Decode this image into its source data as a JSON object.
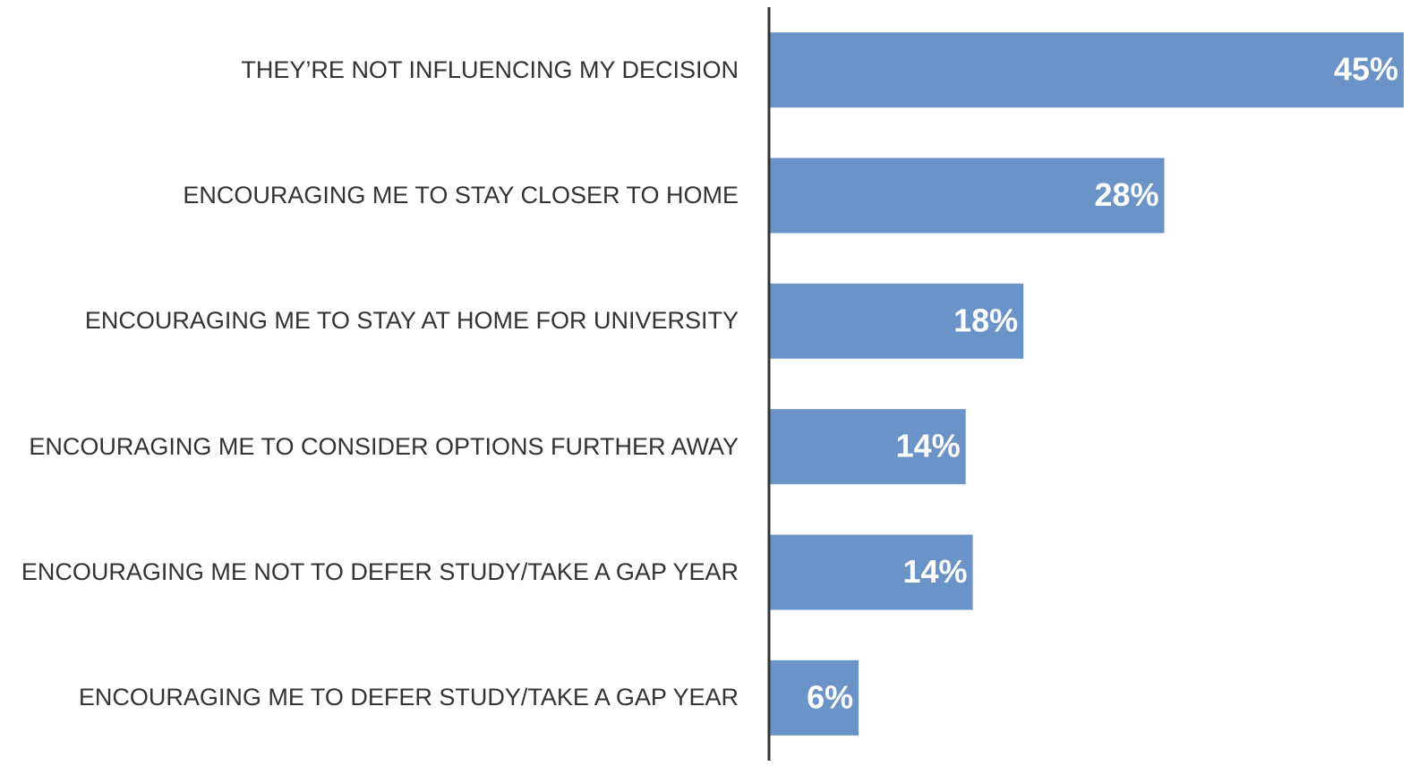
{
  "chart_data": {
    "type": "bar",
    "orientation": "horizontal",
    "categories": [
      "THEY’RE NOT INFLUENCING MY DECISION",
      "ENCOURAGING ME TO STAY CLOSER TO HOME",
      "ENCOURAGING ME TO STAY AT HOME FOR UNIVERSITY",
      "ENCOURAGING ME TO CONSIDER OPTIONS FURTHER AWAY",
      "ENCOURAGING ME NOT TO DEFER STUDY/TAKE A GAP YEAR",
      "ENCOURAGING ME TO DEFER STUDY/TAKE A GAP YEAR"
    ],
    "values": [
      45,
      28,
      18,
      13.9,
      14.4,
      6.3
    ],
    "value_labels": [
      "45%",
      "28%",
      "18%",
      "14%",
      "14%",
      "6%"
    ],
    "color": "#6a93c7",
    "xlim": [
      0,
      45
    ]
  }
}
